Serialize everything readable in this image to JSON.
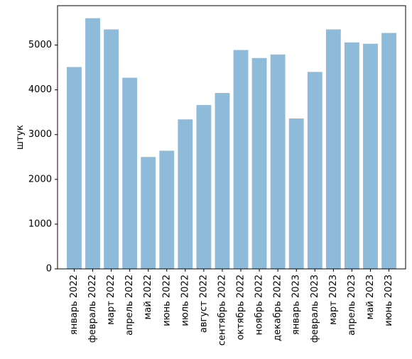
{
  "chart_data": {
    "type": "bar",
    "title": "",
    "xlabel": "",
    "ylabel": "штук",
    "ylim": [
      0,
      5880
    ],
    "yticks": [
      0,
      1000,
      2000,
      3000,
      4000,
      5000
    ],
    "grid": false,
    "bar_color": "#8fbbdb",
    "categories": [
      "январь 2022",
      "февраль 2022",
      "март 2022",
      "апрель 2022",
      "май 2022",
      "июнь 2022",
      "июль 2022",
      "август 2022",
      "сентябрь 2022",
      "октябрь 2022",
      "ноябрь 2022",
      "декабрь 2022",
      "январь 2023",
      "февраль 2023",
      "март 2023",
      "апрель 2023",
      "май 2023",
      "июнь 2023"
    ],
    "values": [
      4510,
      5600,
      5350,
      4270,
      2500,
      2640,
      3340,
      3660,
      3930,
      4890,
      4710,
      4790,
      3360,
      4400,
      5350,
      5060,
      5030,
      5270
    ]
  }
}
